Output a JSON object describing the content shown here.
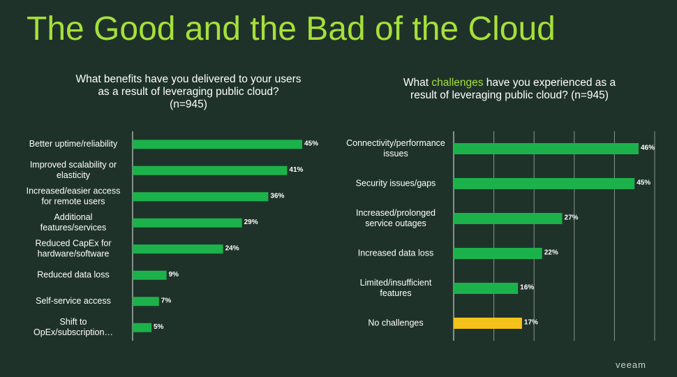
{
  "title": "The Good and the Bad of the Cloud",
  "brand": "veeam",
  "colors": {
    "background": "#1f322a",
    "bar": "#1cb24b",
    "highlight_bar": "#f5c21b",
    "title": "#a6e03a",
    "grid": "#8a9690"
  },
  "left_chart": {
    "question_line1": "What benefits have you delivered to your users",
    "question_line2": "as a result of leveraging public cloud?",
    "question_line3": "(n=945)"
  },
  "right_chart": {
    "question_prefix": "What ",
    "question_highlight": "challenges",
    "question_suffix": " have you experienced as a",
    "question_line2": "result of leveraging public cloud?  (n=945)"
  },
  "chart_data": [
    {
      "type": "bar",
      "orientation": "horizontal",
      "categories": [
        [
          "Better uptime/reliability"
        ],
        [
          "Improved scalability or",
          "elasticity"
        ],
        [
          "Increased/easier access",
          "for remote users"
        ],
        [
          "Additional",
          "features/services"
        ],
        [
          "Reduced CapEx for",
          "hardware/software"
        ],
        [
          "Reduced data loss"
        ],
        [
          "Self-service access"
        ],
        [
          "Shift to",
          "OpEx/subscription…"
        ]
      ],
      "values": [
        45,
        41,
        36,
        29,
        24,
        9,
        7,
        5
      ],
      "labels": [
        "45%",
        "41%",
        "36%",
        "29%",
        "24%",
        "9%",
        "7%",
        "5%"
      ],
      "xlim": [
        0,
        50
      ],
      "grid": false
    },
    {
      "type": "bar",
      "orientation": "horizontal",
      "categories": [
        [
          "Connectivity/performance",
          "issues"
        ],
        [
          "Security issues/gaps"
        ],
        [
          "Increased/prolonged",
          "service outages"
        ],
        [
          "Increased data loss"
        ],
        [
          "Limited/insufficient",
          "features"
        ],
        [
          "No challenges"
        ]
      ],
      "values": [
        46,
        45,
        27,
        22,
        16,
        17
      ],
      "labels": [
        "46%",
        "45%",
        "27%",
        "22%",
        "16%",
        "17%"
      ],
      "highlight_index": 5,
      "xlim": [
        0,
        50
      ],
      "grid": true
    }
  ]
}
